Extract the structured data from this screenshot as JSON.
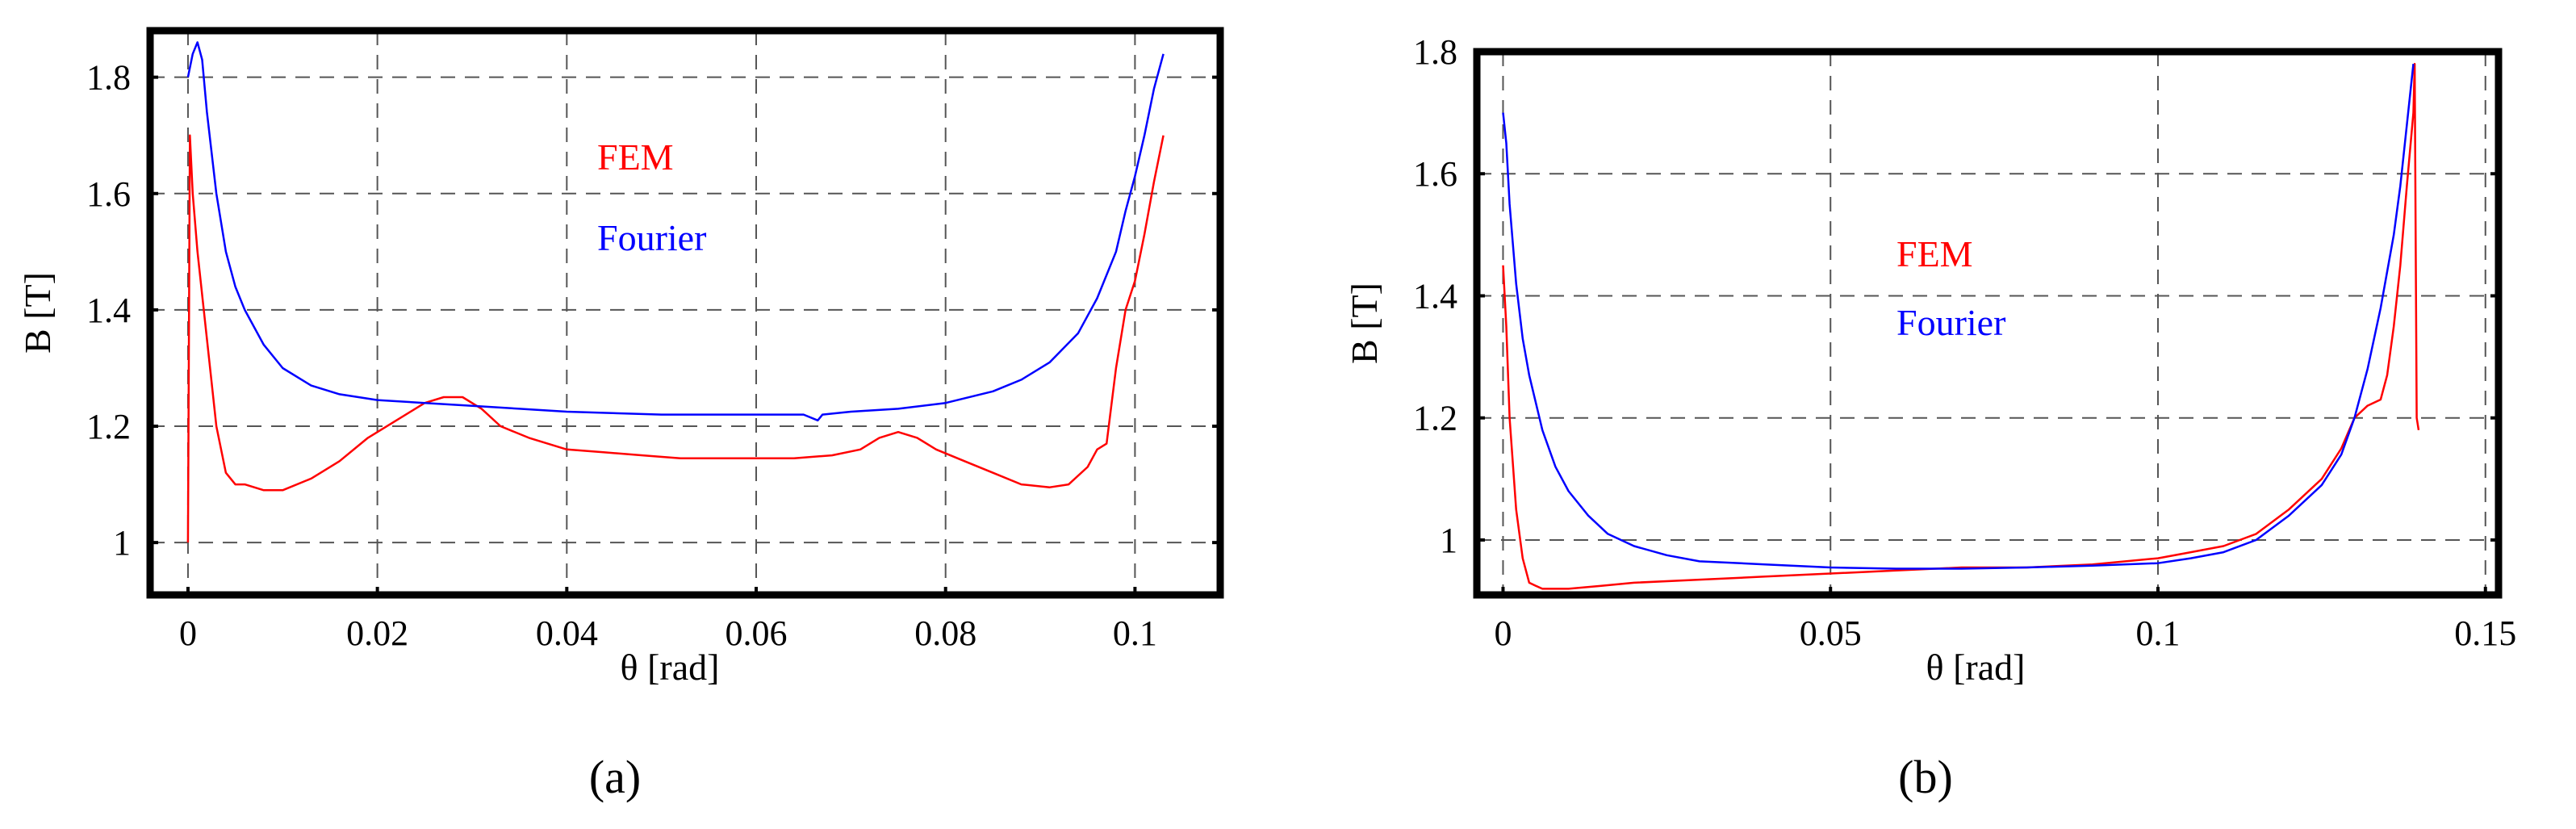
{
  "figure": {
    "panel_labels": [
      "(a)",
      "(b)"
    ]
  },
  "chart_data": [
    {
      "type": "line",
      "panel": "(a)",
      "xlabel": "θ [rad]",
      "ylabel": "B [T]",
      "xlim": [
        -0.004,
        0.109
      ],
      "ylim": [
        0.91,
        1.88
      ],
      "xticks": [
        0,
        0.02,
        0.04,
        0.06,
        0.08,
        0.1
      ],
      "xtick_labels": [
        "0",
        "0.02",
        "0.04",
        "0.06",
        "0.08",
        "0.1"
      ],
      "yticks": [
        1,
        1.2,
        1.4,
        1.6,
        1.8
      ],
      "ytick_labels": [
        "1",
        "1.2",
        "1.4",
        "1.6",
        "1.8"
      ],
      "grid": true,
      "legend": {
        "placement": "upper-center"
      },
      "series": [
        {
          "name": "FEM",
          "color": "#ff0000",
          "x": [
            0,
            0.0002,
            0.0005,
            0.001,
            0.002,
            0.003,
            0.004,
            0.005,
            0.006,
            0.008,
            0.01,
            0.013,
            0.016,
            0.019,
            0.022,
            0.025,
            0.027,
            0.029,
            0.031,
            0.033,
            0.036,
            0.04,
            0.044,
            0.048,
            0.052,
            0.056,
            0.06,
            0.064,
            0.068,
            0.071,
            0.073,
            0.075,
            0.077,
            0.079,
            0.082,
            0.085,
            0.088,
            0.091,
            0.093,
            0.095,
            0.096,
            0.097,
            0.098,
            0.099,
            0.1,
            0.101,
            0.102,
            0.103
          ],
          "y": [
            1.0,
            1.7,
            1.6,
            1.5,
            1.35,
            1.2,
            1.12,
            1.1,
            1.1,
            1.09,
            1.09,
            1.11,
            1.14,
            1.18,
            1.21,
            1.24,
            1.25,
            1.25,
            1.23,
            1.2,
            1.18,
            1.16,
            1.155,
            1.15,
            1.145,
            1.145,
            1.145,
            1.145,
            1.15,
            1.16,
            1.18,
            1.19,
            1.18,
            1.16,
            1.14,
            1.12,
            1.1,
            1.095,
            1.1,
            1.13,
            1.16,
            1.17,
            1.3,
            1.4,
            1.45,
            1.53,
            1.62,
            1.7
          ]
        },
        {
          "name": "Fourier",
          "color": "#0000ff",
          "x": [
            0,
            0.0005,
            0.001,
            0.0015,
            0.002,
            0.003,
            0.004,
            0.005,
            0.006,
            0.008,
            0.01,
            0.013,
            0.016,
            0.02,
            0.025,
            0.03,
            0.035,
            0.04,
            0.05,
            0.06,
            0.065,
            0.0665,
            0.067,
            0.07,
            0.075,
            0.08,
            0.085,
            0.088,
            0.091,
            0.094,
            0.096,
            0.098,
            0.099,
            0.1,
            0.101,
            0.102,
            0.103
          ],
          "y": [
            1.8,
            1.84,
            1.86,
            1.83,
            1.74,
            1.6,
            1.5,
            1.44,
            1.4,
            1.34,
            1.3,
            1.27,
            1.255,
            1.245,
            1.24,
            1.235,
            1.23,
            1.225,
            1.22,
            1.22,
            1.22,
            1.21,
            1.22,
            1.225,
            1.23,
            1.24,
            1.26,
            1.28,
            1.31,
            1.36,
            1.42,
            1.5,
            1.57,
            1.63,
            1.7,
            1.78,
            1.84
          ]
        }
      ]
    },
    {
      "type": "line",
      "panel": "(b)",
      "xlabel": "θ [rad]",
      "ylabel": "B [T]",
      "xlim": [
        -0.004,
        0.152
      ],
      "ylim": [
        0.91,
        1.8
      ],
      "xticks": [
        0,
        0.05,
        0.1,
        0.15
      ],
      "xtick_labels": [
        "0",
        "0.05",
        "0.1",
        "0.15"
      ],
      "yticks": [
        1,
        1.2,
        1.4,
        1.6,
        1.8
      ],
      "ytick_labels": [
        "1",
        "1.2",
        "1.4",
        "1.6",
        "1.8"
      ],
      "grid": true,
      "legend": {
        "placement": "center-left"
      },
      "series": [
        {
          "name": "FEM",
          "color": "#ff0000",
          "x": [
            0,
            0.0005,
            0.001,
            0.002,
            0.003,
            0.004,
            0.005,
            0.006,
            0.008,
            0.01,
            0.015,
            0.02,
            0.03,
            0.04,
            0.05,
            0.06,
            0.07,
            0.08,
            0.09,
            0.1,
            0.105,
            0.11,
            0.115,
            0.12,
            0.125,
            0.128,
            0.13,
            0.132,
            0.134,
            0.135,
            0.136,
            0.137,
            0.138,
            0.139,
            0.1392,
            0.1395,
            0.1398
          ],
          "y": [
            1.45,
            1.35,
            1.2,
            1.05,
            0.97,
            0.93,
            0.925,
            0.92,
            0.92,
            0.92,
            0.925,
            0.93,
            0.935,
            0.94,
            0.945,
            0.95,
            0.955,
            0.955,
            0.96,
            0.97,
            0.98,
            0.99,
            1.01,
            1.05,
            1.1,
            1.15,
            1.2,
            1.22,
            1.23,
            1.27,
            1.35,
            1.45,
            1.58,
            1.7,
            1.78,
            1.2,
            1.18
          ]
        },
        {
          "name": "Fourier",
          "color": "#0000ff",
          "x": [
            0,
            0.0005,
            0.001,
            0.002,
            0.003,
            0.004,
            0.006,
            0.008,
            0.01,
            0.013,
            0.016,
            0.02,
            0.025,
            0.03,
            0.04,
            0.05,
            0.06,
            0.07,
            0.08,
            0.09,
            0.1,
            0.105,
            0.11,
            0.115,
            0.12,
            0.125,
            0.128,
            0.13,
            0.132,
            0.134,
            0.136,
            0.137,
            0.138,
            0.139
          ],
          "y": [
            1.7,
            1.65,
            1.55,
            1.42,
            1.33,
            1.27,
            1.18,
            1.12,
            1.08,
            1.04,
            1.01,
            0.99,
            0.975,
            0.965,
            0.96,
            0.955,
            0.953,
            0.953,
            0.955,
            0.958,
            0.962,
            0.97,
            0.98,
            1.0,
            1.04,
            1.09,
            1.14,
            1.2,
            1.28,
            1.38,
            1.5,
            1.58,
            1.68,
            1.78
          ]
        }
      ]
    }
  ]
}
